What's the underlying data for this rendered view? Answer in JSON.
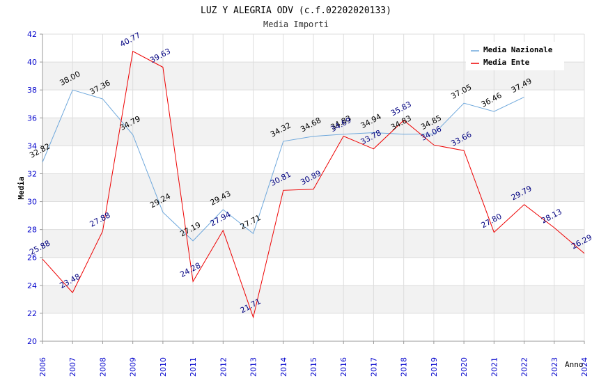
{
  "chart_data": {
    "type": "line",
    "title": "LUZ Y ALEGRIA ODV (c.f.02202020133)",
    "subtitle": "Media Importi",
    "xlabel": "Anno",
    "ylabel": "Media",
    "ylim": [
      20,
      42
    ],
    "yticks": [
      "20",
      "22",
      "24",
      "26",
      "28",
      "30",
      "32",
      "34",
      "36",
      "38",
      "40",
      "42"
    ],
    "categories": [
      "2006",
      "2007",
      "2008",
      "2009",
      "2010",
      "2011",
      "2012",
      "2013",
      "2014",
      "2015",
      "2016",
      "2017",
      "2018",
      "2019",
      "2020",
      "2021",
      "2022",
      "2023",
      "2024"
    ],
    "legend_position": "top-right",
    "series": [
      {
        "name": "Media Nazionale",
        "color": "#6fa8dc",
        "label_color": "#000000",
        "values": [
          32.82,
          38.0,
          37.36,
          34.79,
          29.24,
          27.19,
          29.43,
          27.71,
          34.32,
          34.68,
          34.83,
          34.94,
          34.83,
          34.85,
          37.05,
          36.46,
          37.49,
          null,
          null
        ],
        "labels": [
          "32.82",
          "38.00",
          "37.36",
          "34.79",
          "29.24",
          "27.19",
          "29.43",
          "27.71",
          "34.32",
          "34.68",
          "34.83",
          "34.94",
          "34.83",
          "34.85",
          "37.05",
          "36.46",
          "37.49",
          null,
          null
        ]
      },
      {
        "name": "Media Ente",
        "color": "#ee0000",
        "label_color": "#000080",
        "values": [
          25.88,
          23.48,
          27.88,
          40.77,
          39.63,
          24.28,
          27.94,
          21.71,
          30.81,
          30.89,
          34.69,
          33.78,
          35.83,
          34.06,
          33.66,
          27.8,
          29.79,
          28.13,
          26.29
        ],
        "labels": [
          "25.88",
          "23.48",
          "27.88",
          "40.77",
          "39.63",
          "24.28",
          "27.94",
          "21.71",
          "30.81",
          "30.89",
          "34.69",
          "33.78",
          "35.83",
          "34.06",
          "33.66",
          "27.80",
          "29.79",
          "28.13",
          "26.29"
        ]
      }
    ]
  }
}
